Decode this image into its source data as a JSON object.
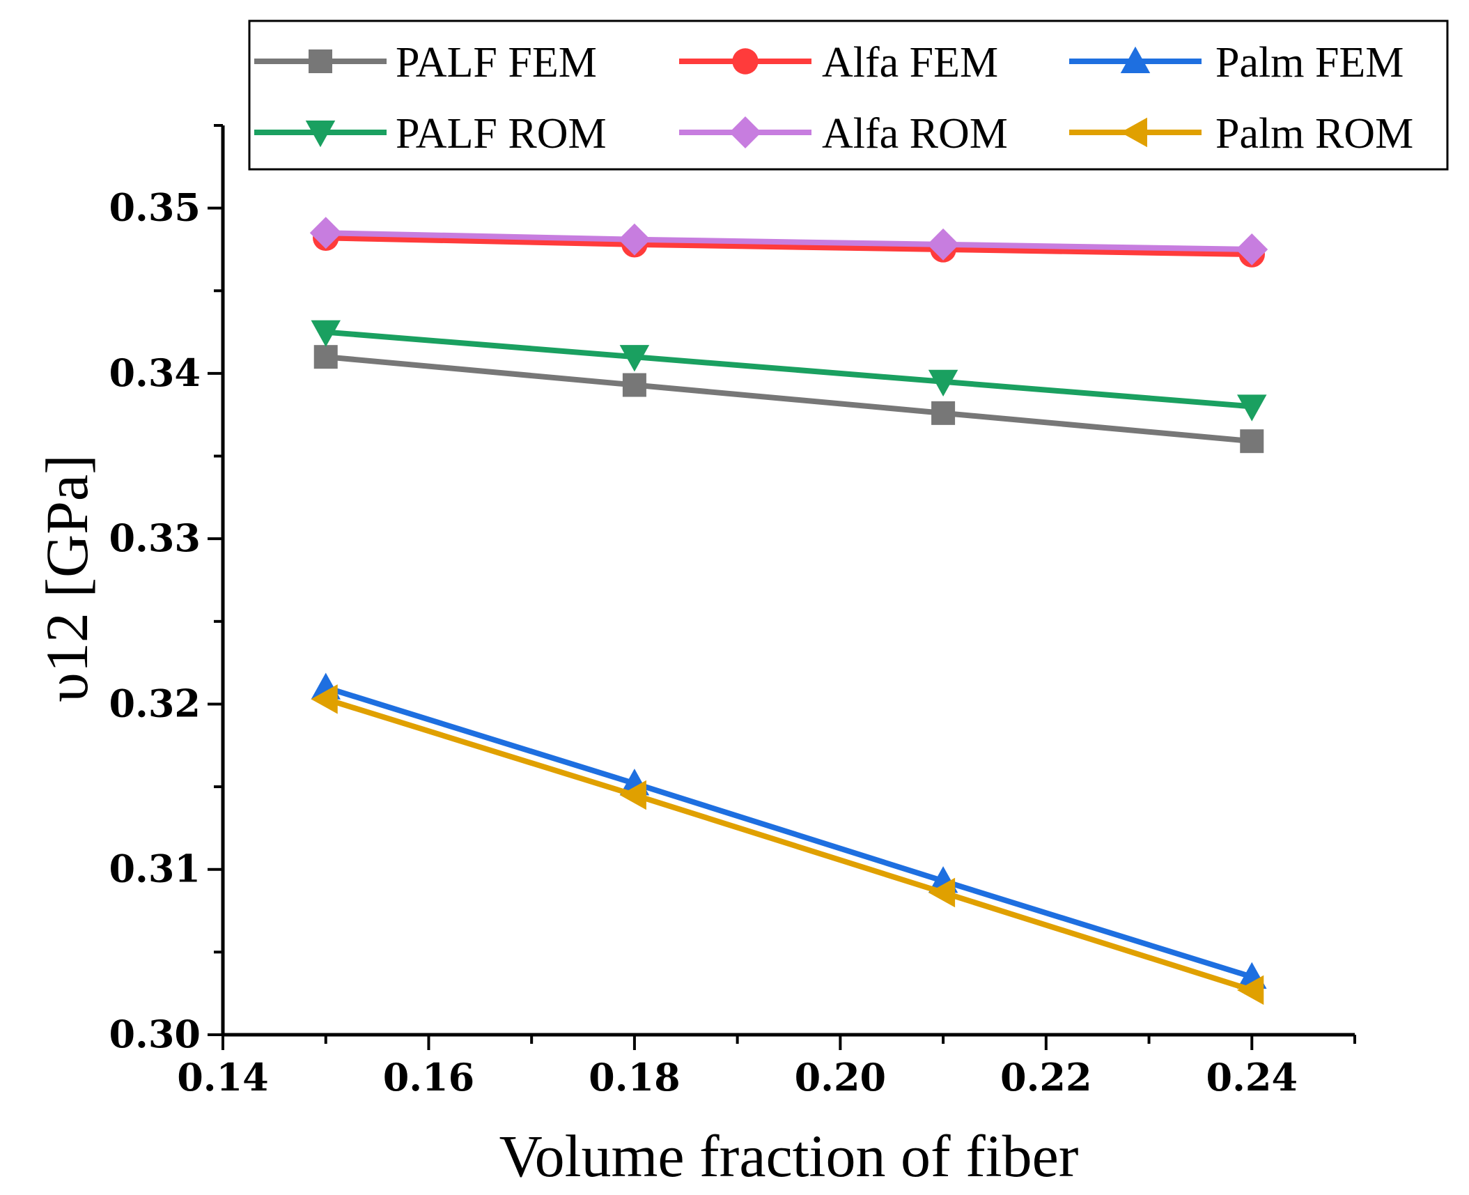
{
  "chart_data": {
    "type": "line",
    "xlabel": "Volume fraction of  fiber",
    "ylabel": "υ12 [GPa]",
    "xlim": [
      0.14,
      0.25
    ],
    "ylim": [
      0.3,
      0.355
    ],
    "xticks": [
      "0.14",
      "0.16",
      "0.18",
      "0.20",
      "0.22",
      "0.24"
    ],
    "yticks": [
      "0.30",
      "0.31",
      "0.32",
      "0.33",
      "0.34",
      "0.35"
    ],
    "grid": false,
    "legend_position": "top",
    "x": [
      0.15,
      0.18,
      0.21,
      0.24
    ],
    "series": [
      {
        "name": "PALF FEM",
        "color": "#777777",
        "marker": "square",
        "values": [
          0.341,
          0.3393,
          0.3376,
          0.3359
        ]
      },
      {
        "name": "Alfa FEM",
        "color": "#ff3b3b",
        "marker": "circle",
        "values": [
          0.3482,
          0.3478,
          0.3475,
          0.3472
        ]
      },
      {
        "name": "Palm FEM",
        "color": "#1e6fe0",
        "marker": "triangle-up",
        "values": [
          0.321,
          0.3152,
          0.3093,
          0.3035
        ]
      },
      {
        "name": "PALF ROM",
        "color": "#1aa060",
        "marker": "triangle-down",
        "values": [
          0.3425,
          0.341,
          0.3395,
          0.338
        ]
      },
      {
        "name": "Alfa ROM",
        "color": "#c77ddf",
        "marker": "diamond",
        "values": [
          0.3485,
          0.3481,
          0.3478,
          0.3475
        ]
      },
      {
        "name": "Palm ROM",
        "color": "#e0a000",
        "marker": "triangle-left",
        "values": [
          0.3203,
          0.3145,
          0.3086,
          0.3027
        ]
      }
    ]
  }
}
